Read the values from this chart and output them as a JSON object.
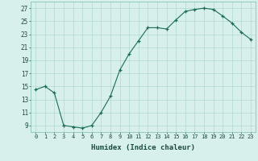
{
  "x": [
    0,
    1,
    2,
    3,
    4,
    5,
    6,
    7,
    8,
    9,
    10,
    11,
    12,
    13,
    14,
    15,
    16,
    17,
    18,
    19,
    20,
    21,
    22,
    23
  ],
  "y": [
    14.5,
    15.0,
    14.0,
    9.0,
    8.8,
    8.6,
    9.0,
    11.0,
    13.5,
    17.5,
    20.0,
    22.0,
    24.0,
    24.0,
    23.8,
    25.2,
    26.5,
    26.8,
    27.0,
    26.8,
    25.8,
    24.7,
    23.3,
    22.2
  ],
  "line_color": "#1a6b5a",
  "bg_color": "#d8f0ec",
  "grid_color": "#b0d8d0",
  "xlabel": "Humidex (Indice chaleur)",
  "ylim": [
    8,
    28
  ],
  "xlim": [
    -0.5,
    23.5
  ],
  "yticks": [
    9,
    11,
    13,
    15,
    17,
    19,
    21,
    23,
    25,
    27
  ],
  "xtick_labels": [
    "0",
    "1",
    "2",
    "3",
    "4",
    "5",
    "6",
    "7",
    "8",
    "9",
    "10",
    "11",
    "12",
    "13",
    "14",
    "15",
    "16",
    "17",
    "18",
    "19",
    "20",
    "21",
    "22",
    "23"
  ]
}
